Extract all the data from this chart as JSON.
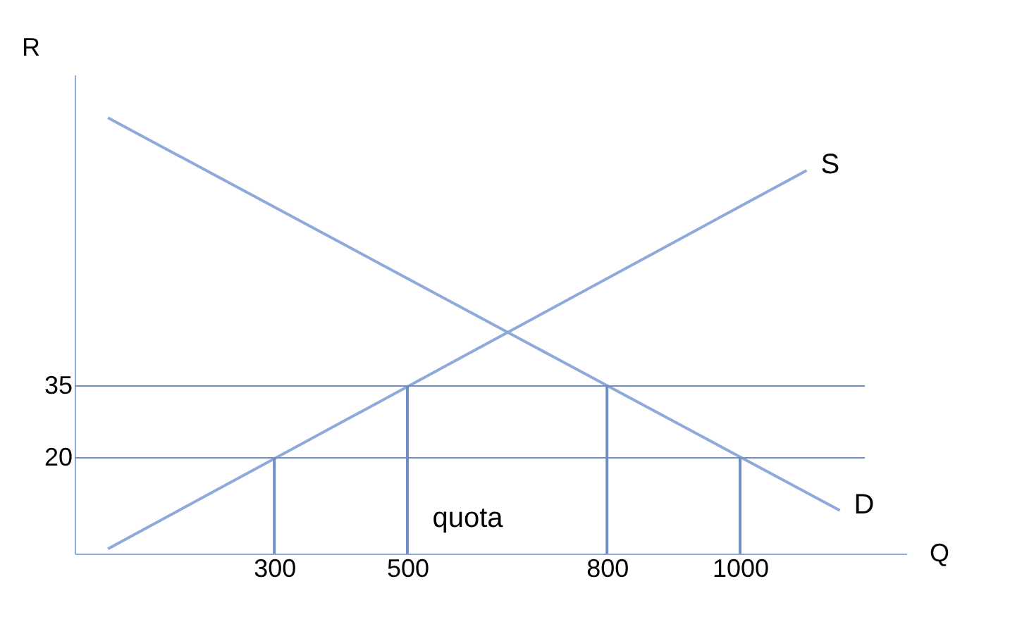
{
  "chart_data": {
    "type": "line",
    "xlabel": "Q",
    "ylabel": "R",
    "xlim": [
      0,
      1250
    ],
    "ylim": [
      0,
      100
    ],
    "xticks": [
      300,
      500,
      800,
      {
        "value": 1000,
        "label": "1000"
      }
    ],
    "yticks": [
      20,
      35
    ],
    "grid": false,
    "marker": "none",
    "line_style": "solid",
    "series": [
      {
        "color": "#8eaadb",
        "x": [
          50,
          1100
        ],
        "values": [
          1,
          80
        ]
      },
      {
        "color": "#8eaadb",
        "x": [
          50,
          1150
        ],
        "values": [
          91,
          9
        ]
      },
      {
        "color": "#6f8fc4",
        "x": [
          300,
          300
        ],
        "values": [
          0,
          20
        ]
      },
      {
        "color": "#6f8fc4",
        "x": [
          500,
          500
        ],
        "values": [
          0,
          35
        ]
      },
      {
        "color": "#6f8fc4",
        "x": [
          800,
          800
        ],
        "values": [
          0,
          35
        ]
      },
      {
        "color": "#6f8fc4",
        "x": [
          1000,
          1000
        ],
        "values": [
          0,
          20
        ]
      }
    ],
    "ref_lines": [
      {
        "axis": "y",
        "value": 35,
        "label": null,
        "color": "#6f8fc4"
      },
      {
        "axis": "y",
        "value": 20,
        "label": null,
        "color": "#6f8fc4"
      }
    ],
    "annotations": [
      {
        "text": "S",
        "x": 1100,
        "y": 80
      },
      {
        "text": "D",
        "x": 1150,
        "y": 9
      },
      "quota"
    ]
  }
}
